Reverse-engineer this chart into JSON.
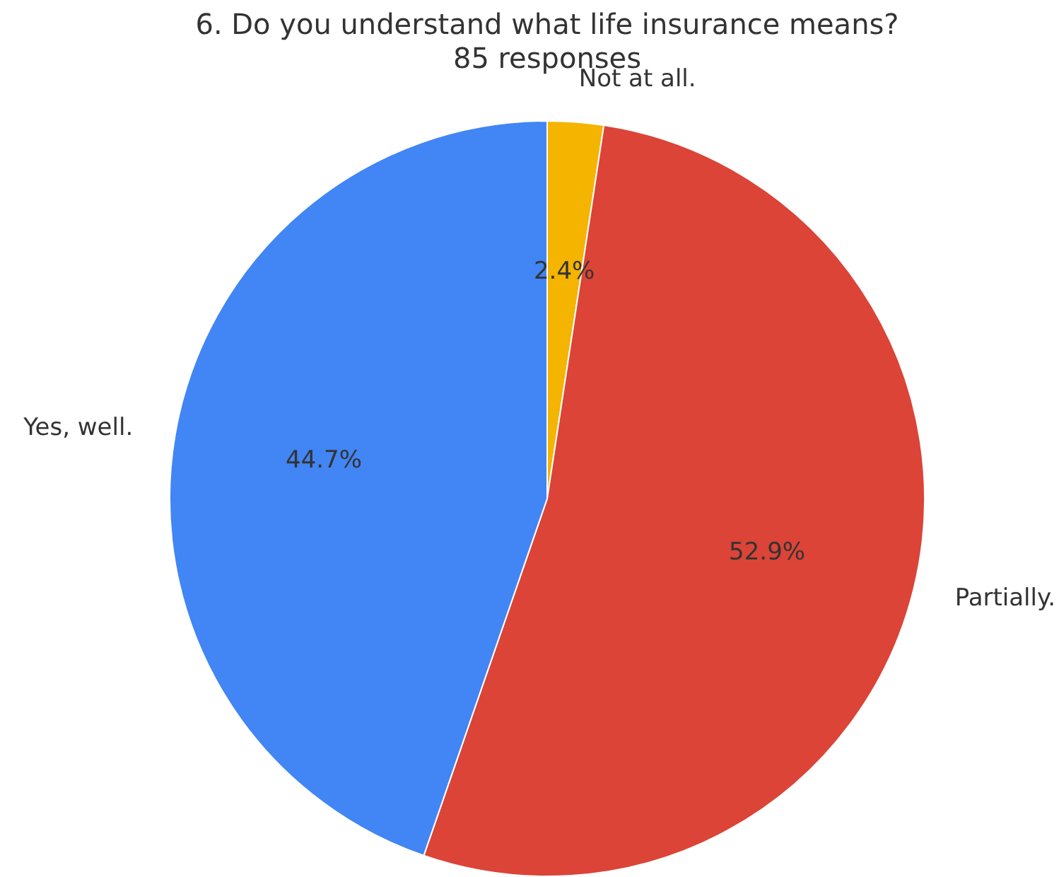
{
  "chart_data": {
    "type": "pie",
    "title": "6. Do you understand what life insurance means?",
    "subtitle": "85 responses",
    "categories": [
      "Not at all.",
      "Partially.",
      "Yes, well."
    ],
    "values": [
      2.4,
      52.9,
      44.7
    ],
    "colors": [
      "#f4b400",
      "#db4437",
      "#4285f4"
    ],
    "value_labels": [
      "2.4%",
      "52.9%",
      "44.7%"
    ],
    "legend": false
  }
}
